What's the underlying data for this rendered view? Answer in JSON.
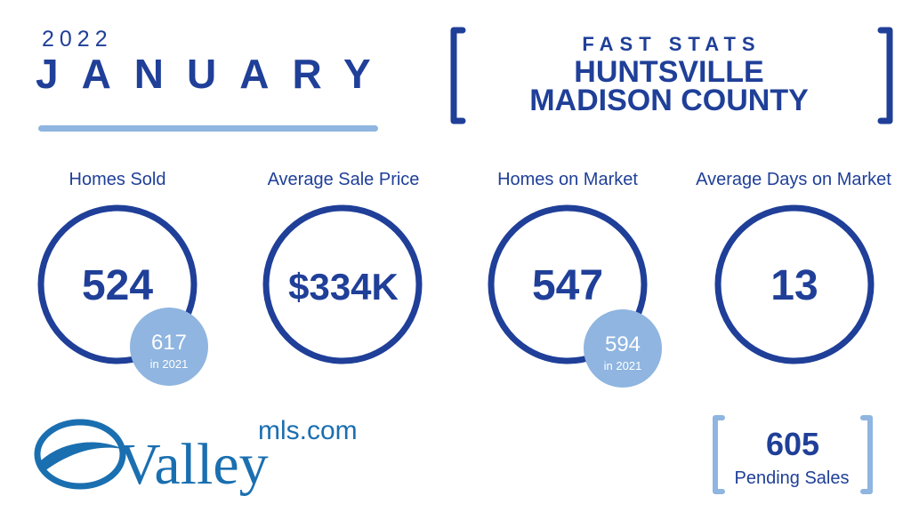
{
  "header": {
    "year": "2022",
    "month": "JANUARY",
    "kicker": "FAST STATS",
    "city": "HUNTSVILLE",
    "county": "MADISON COUNTY"
  },
  "stats": [
    {
      "label": "Homes Sold",
      "value": "524",
      "prior_value": "617",
      "prior_label": "in 2021"
    },
    {
      "label": "Average Sale Price",
      "value": "$334K"
    },
    {
      "label": "Homes on Market",
      "value": "547",
      "prior_value": "594",
      "prior_label": "in 2021"
    },
    {
      "label": "Average Days on Market",
      "value": "13"
    }
  ],
  "logo": {
    "name": "Valley",
    "suffix": "mls.com"
  },
  "pending": {
    "value": "605",
    "label": "Pending Sales"
  }
}
